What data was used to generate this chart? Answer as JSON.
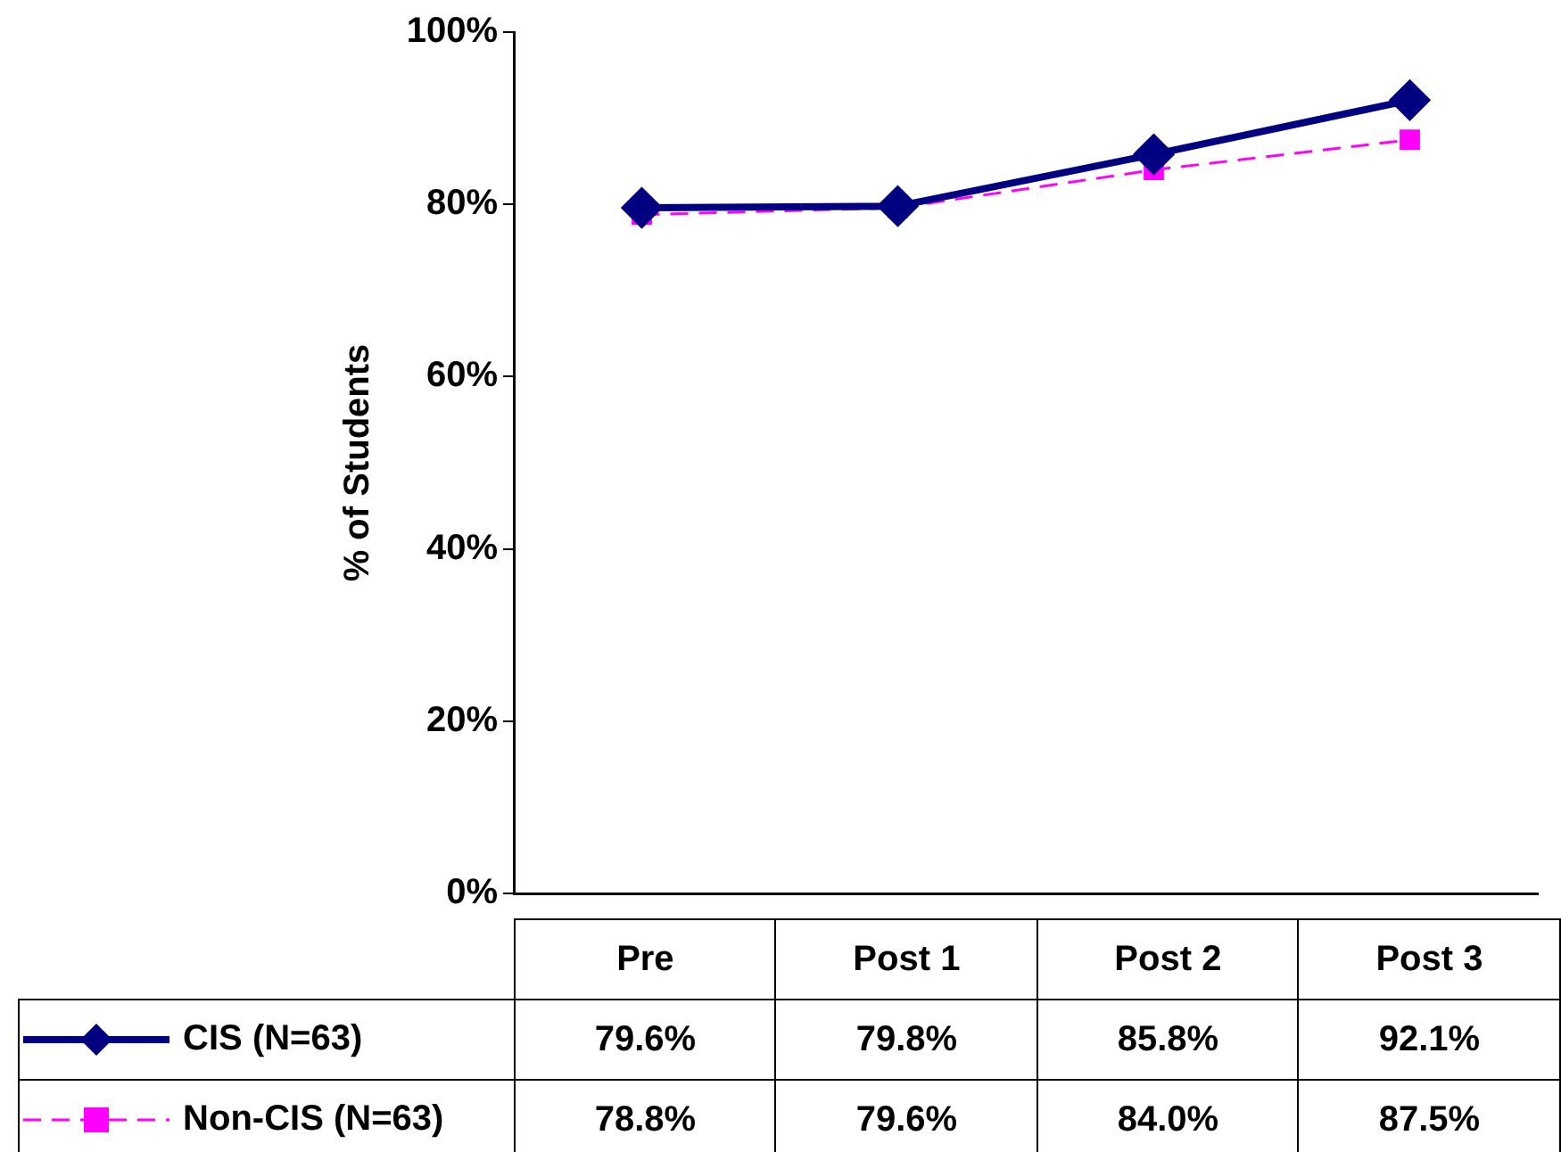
{
  "chart_data": {
    "type": "line",
    "ylabel": "% of Students",
    "categories": [
      "Pre",
      "Post 1",
      "Post 2",
      "Post 3"
    ],
    "series": [
      {
        "name": "CIS (N=63)",
        "color": "#000080",
        "values": [
          79.6,
          79.8,
          85.8,
          92.1
        ],
        "value_labels": [
          "79.6%",
          "79.8%",
          "85.8%",
          "92.1%"
        ],
        "marker": "diamond",
        "line_style": "solid"
      },
      {
        "name": "Non-CIS (N=63)",
        "color": "#ff00ff",
        "values": [
          78.8,
          79.6,
          84.0,
          87.5
        ],
        "value_labels": [
          "78.8%",
          "79.6%",
          "84.0%",
          "87.5%"
        ],
        "marker": "square",
        "line_style": "dashed"
      }
    ],
    "ylim": [
      0,
      100
    ],
    "yticks": [
      {
        "value": 0,
        "label": "0%"
      },
      {
        "value": 20,
        "label": "20%"
      },
      {
        "value": 40,
        "label": "40%"
      },
      {
        "value": 60,
        "label": "60%"
      },
      {
        "value": 80,
        "label": "80%"
      },
      {
        "value": 100,
        "label": "100%"
      }
    ],
    "grid": false,
    "legend": "bottom"
  }
}
